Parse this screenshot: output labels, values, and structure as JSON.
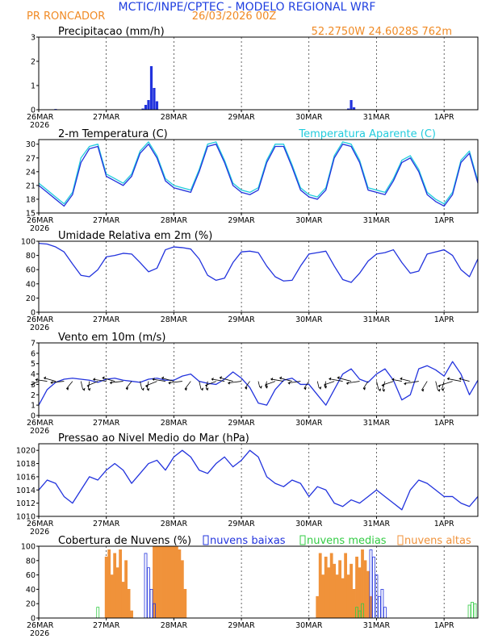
{
  "header": {
    "title": "MCTIC/INPE/CPTEC - MODELO REGIONAL WRF",
    "location": "PR RONCADOR",
    "run": "26/03/2026 00Z",
    "coords": "52.2750W  24.6028S  762m"
  },
  "x_axis": {
    "labels": [
      "26MAR",
      "27MAR",
      "28MAR",
      "29MAR",
      "30MAR",
      "31MAR",
      "1APR"
    ],
    "year": "2026",
    "range_hours": [
      0,
      156
    ]
  },
  "colors": {
    "blue": "#2233dd",
    "cyan": "#22ccdd",
    "orange": "#f0923a",
    "green": "#33cc44"
  },
  "chart_data": [
    {
      "type": "bar",
      "id": "precip",
      "title": "Precipitacao (mm/h)",
      "ylim": [
        0,
        3
      ],
      "yticks": [
        0,
        1,
        2,
        3
      ],
      "bars": [
        {
          "h": 6,
          "v": 0.03
        },
        {
          "h": 37,
          "v": 0.05
        },
        {
          "h": 38,
          "v": 0.2
        },
        {
          "h": 39,
          "v": 0.4
        },
        {
          "h": 40,
          "v": 1.8
        },
        {
          "h": 41,
          "v": 0.9
        },
        {
          "h": 42,
          "v": 0.35
        },
        {
          "h": 110,
          "v": 0.05
        },
        {
          "h": 111,
          "v": 0.4
        },
        {
          "h": 112,
          "v": 0.1
        }
      ]
    },
    {
      "type": "line",
      "id": "temp",
      "title": "2-m Temperatura (C)",
      "legend": "Temperatura Aparente (C)",
      "ylim": [
        15,
        31
      ],
      "yticks": [
        15,
        18,
        21,
        24,
        27,
        30
      ],
      "x": [
        0,
        3,
        6,
        9,
        12,
        15,
        18,
        21,
        24,
        27,
        30,
        33,
        36,
        39,
        42,
        45,
        48,
        51,
        54,
        57,
        60,
        63,
        66,
        69,
        72,
        75,
        78,
        81,
        84,
        87,
        90,
        93,
        96,
        99,
        102,
        105,
        108,
        111,
        114,
        117,
        120,
        123,
        126,
        129,
        132,
        135,
        138,
        141,
        144,
        147,
        150,
        153,
        156
      ],
      "series": [
        {
          "name": "2-m Temperatura",
          "values": [
            21,
            19.5,
            18,
            16.5,
            19,
            26,
            29,
            29.5,
            23,
            22,
            21,
            23,
            28,
            30,
            27,
            22,
            20.5,
            20,
            19.5,
            24,
            29.5,
            30,
            26,
            21,
            19.5,
            19,
            20,
            26,
            29.5,
            29.5,
            25,
            20,
            18.5,
            18,
            20,
            27,
            30,
            29.5,
            26,
            20,
            19.5,
            19,
            22,
            26,
            27,
            24,
            19,
            17.5,
            16.5,
            19,
            26,
            28,
            21.5
          ]
        },
        {
          "name": "Temperatura Aparente",
          "values": [
            21.5,
            20,
            18.5,
            17,
            19.5,
            27,
            29.5,
            30,
            23.5,
            22.5,
            21.5,
            23.5,
            28.5,
            30.5,
            27.5,
            22.5,
            21,
            20.5,
            20,
            24.5,
            30,
            30.5,
            26.5,
            21.5,
            20,
            19.5,
            20.5,
            26.5,
            30,
            30,
            25.5,
            20.5,
            19,
            18.5,
            20.5,
            27.5,
            30.5,
            30,
            26.5,
            20.5,
            20,
            19.5,
            22.5,
            26.5,
            27.5,
            24.5,
            19.5,
            18,
            17,
            19.5,
            26.5,
            28.5,
            22
          ]
        }
      ]
    },
    {
      "type": "line",
      "id": "rh",
      "title": "Umidade Relativa em 2m (%)",
      "ylim": [
        0,
        100
      ],
      "yticks": [
        0,
        20,
        40,
        60,
        80,
        100
      ],
      "x": [
        0,
        3,
        6,
        9,
        12,
        15,
        18,
        21,
        24,
        27,
        30,
        33,
        36,
        39,
        42,
        45,
        48,
        51,
        54,
        57,
        60,
        63,
        66,
        69,
        72,
        75,
        78,
        81,
        84,
        87,
        90,
        93,
        96,
        99,
        102,
        105,
        108,
        111,
        114,
        117,
        120,
        123,
        126,
        129,
        132,
        135,
        138,
        141,
        144,
        147,
        150,
        153,
        156
      ],
      "series": [
        {
          "name": "Umidade Relativa",
          "values": [
            97,
            96,
            92,
            85,
            68,
            52,
            50,
            60,
            78,
            80,
            83,
            82,
            70,
            57,
            62,
            88,
            92,
            91,
            89,
            75,
            52,
            45,
            48,
            70,
            85,
            86,
            84,
            65,
            50,
            44,
            45,
            65,
            82,
            84,
            86,
            65,
            46,
            42,
            55,
            72,
            82,
            84,
            88,
            70,
            55,
            58,
            82,
            85,
            88,
            80,
            60,
            50,
            75
          ]
        }
      ]
    },
    {
      "type": "line",
      "id": "wind",
      "title": "Vento em 10m (m/s)",
      "ylim": [
        0,
        7
      ],
      "yticks": [
        0,
        1,
        2,
        3,
        4,
        5,
        6,
        7
      ],
      "x": [
        0,
        3,
        6,
        9,
        12,
        15,
        18,
        21,
        24,
        27,
        30,
        33,
        36,
        39,
        42,
        45,
        48,
        51,
        54,
        57,
        60,
        63,
        66,
        69,
        72,
        75,
        78,
        81,
        84,
        87,
        90,
        93,
        96,
        99,
        102,
        105,
        108,
        111,
        114,
        117,
        120,
        123,
        126,
        129,
        132,
        135,
        138,
        141,
        144,
        147,
        150,
        153,
        156
      ],
      "series": [
        {
          "name": "Vento",
          "values": [
            1,
            2.5,
            3.2,
            3.5,
            3.6,
            3.5,
            3.4,
            3.2,
            3.5,
            3.6,
            3.4,
            3.3,
            3.2,
            3.5,
            3.6,
            3.4,
            3.4,
            3.8,
            4,
            3.3,
            3.1,
            3,
            3.5,
            4.2,
            3.6,
            2.7,
            1.2,
            1,
            2.5,
            3.4,
            3.6,
            3,
            3,
            2,
            1,
            2.5,
            4,
            4.5,
            3.5,
            3.2,
            4,
            4.5,
            3.4,
            1.5,
            2,
            4.5,
            4.8,
            4.4,
            3.8,
            5.2,
            4,
            2,
            3.4
          ]
        }
      ]
    },
    {
      "type": "line",
      "id": "pressure",
      "title": "Pressao ao Nivel Medio do Mar (hPa)",
      "ylim": [
        1010,
        1021
      ],
      "yticks": [
        1010,
        1012,
        1014,
        1016,
        1018,
        1020
      ],
      "x": [
        0,
        3,
        6,
        9,
        12,
        15,
        18,
        21,
        24,
        27,
        30,
        33,
        36,
        39,
        42,
        45,
        48,
        51,
        54,
        57,
        60,
        63,
        66,
        69,
        72,
        75,
        78,
        81,
        84,
        87,
        90,
        93,
        96,
        99,
        102,
        105,
        108,
        111,
        114,
        117,
        120,
        123,
        126,
        129,
        132,
        135,
        138,
        141,
        144,
        147,
        150,
        153,
        156
      ],
      "series": [
        {
          "name": "Pressao",
          "values": [
            1014,
            1015.5,
            1015,
            1013,
            1012,
            1014,
            1016,
            1015.5,
            1017,
            1018,
            1017,
            1015,
            1016.5,
            1018,
            1018.5,
            1017,
            1019,
            1020,
            1019,
            1017,
            1016.5,
            1018,
            1019,
            1017.5,
            1018.5,
            1020,
            1019,
            1016,
            1015,
            1014.5,
            1015.5,
            1015,
            1013,
            1014.5,
            1014,
            1012,
            1011.5,
            1012.5,
            1012,
            1013,
            1014,
            1013,
            1012,
            1011,
            1014,
            1015.5,
            1015,
            1014,
            1013,
            1013,
            1012,
            1011.5,
            1013
          ]
        }
      ]
    },
    {
      "type": "bar",
      "id": "clouds",
      "title": "Cobertura de Nuvens (%)",
      "ylim": [
        0,
        100
      ],
      "yticks": [
        0,
        20,
        40,
        60,
        80,
        100
      ],
      "legend": [
        "nuvens baixas",
        "nuvens medias",
        "nuvens altas"
      ],
      "series": [
        {
          "name": "nuvens altas",
          "bars": [
            {
              "h": 24,
              "v": 85
            },
            {
              "h": 25,
              "v": 95
            },
            {
              "h": 26,
              "v": 60
            },
            {
              "h": 27,
              "v": 90
            },
            {
              "h": 28,
              "v": 70
            },
            {
              "h": 29,
              "v": 95
            },
            {
              "h": 30,
              "v": 50
            },
            {
              "h": 31,
              "v": 80
            },
            {
              "h": 32,
              "v": 40
            },
            {
              "h": 33,
              "v": 10
            },
            {
              "h": 41,
              "v": 100
            },
            {
              "h": 42,
              "v": 100
            },
            {
              "h": 43,
              "v": 100
            },
            {
              "h": 44,
              "v": 100
            },
            {
              "h": 45,
              "v": 100
            },
            {
              "h": 46,
              "v": 100
            },
            {
              "h": 47,
              "v": 100
            },
            {
              "h": 48,
              "v": 100
            },
            {
              "h": 49,
              "v": 100
            },
            {
              "h": 50,
              "v": 95
            },
            {
              "h": 51,
              "v": 80
            },
            {
              "h": 52,
              "v": 40
            },
            {
              "h": 99,
              "v": 30
            },
            {
              "h": 100,
              "v": 90
            },
            {
              "h": 101,
              "v": 60
            },
            {
              "h": 102,
              "v": 85
            },
            {
              "h": 103,
              "v": 70
            },
            {
              "h": 104,
              "v": 90
            },
            {
              "h": 105,
              "v": 75
            },
            {
              "h": 106,
              "v": 60
            },
            {
              "h": 107,
              "v": 80
            },
            {
              "h": 108,
              "v": 55
            },
            {
              "h": 109,
              "v": 90
            },
            {
              "h": 110,
              "v": 60
            },
            {
              "h": 111,
              "v": 75
            },
            {
              "h": 112,
              "v": 40
            },
            {
              "h": 113,
              "v": 85
            },
            {
              "h": 114,
              "v": 70
            },
            {
              "h": 115,
              "v": 95
            },
            {
              "h": 116,
              "v": 80
            },
            {
              "h": 117,
              "v": 65
            },
            {
              "h": 118,
              "v": 30
            }
          ]
        },
        {
          "name": "nuvens baixas",
          "bars": [
            {
              "h": 38,
              "v": 90
            },
            {
              "h": 39,
              "v": 70
            },
            {
              "h": 40,
              "v": 40
            },
            {
              "h": 41,
              "v": 20
            },
            {
              "h": 118,
              "v": 95
            },
            {
              "h": 119,
              "v": 85
            },
            {
              "h": 120,
              "v": 60
            },
            {
              "h": 121,
              "v": 30
            },
            {
              "h": 122,
              "v": 40
            },
            {
              "h": 123,
              "v": 15
            }
          ]
        },
        {
          "name": "nuvens medias",
          "bars": [
            {
              "h": 21,
              "v": 15
            },
            {
              "h": 113,
              "v": 15
            },
            {
              "h": 114,
              "v": 10
            },
            {
              "h": 115,
              "v": 20
            },
            {
              "h": 153,
              "v": 18
            },
            {
              "h": 154,
              "v": 22
            },
            {
              "h": 155,
              "v": 20
            }
          ]
        }
      ]
    }
  ]
}
